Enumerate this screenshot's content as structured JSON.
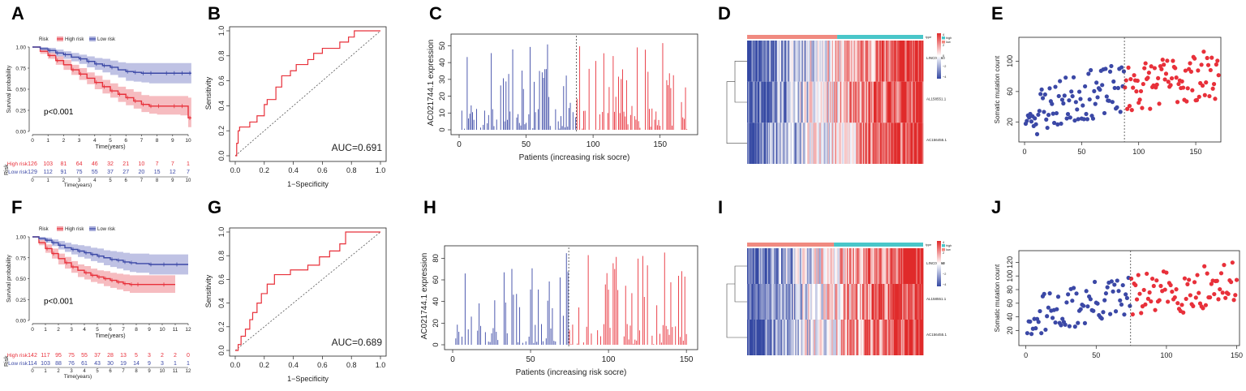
{
  "colors": {
    "high": "#e8303a",
    "low": "#3b48a6",
    "high_band": "#f3a5ab",
    "low_band": "#a9aedb",
    "roc": "#e8303a",
    "heat_low": "#3549a3",
    "heat_mid": "#ffffff",
    "heat_high": "#e02a2a",
    "type_high": "#49c6c9",
    "type_low": "#f08a80",
    "axis": "#222222"
  },
  "chart_data": [
    {
      "id": "A",
      "type": "line",
      "panel_label": "A",
      "legend": {
        "title": "Risk",
        "items": [
          "High risk",
          "Low risk"
        ]
      },
      "ylabel": "Survival probability",
      "xlabel": "Time(years)",
      "xlim": [
        0,
        10
      ],
      "ylim": [
        0,
        1
      ],
      "xticks": [
        0,
        1,
        2,
        3,
        4,
        5,
        6,
        7,
        8,
        9,
        10
      ],
      "yticks": [
        0,
        0.25,
        0.5,
        0.75,
        1
      ],
      "ytick_labels": [
        "0.00",
        "0.25",
        "0.50",
        "0.75",
        "1.00"
      ],
      "pvalue": "p<0.001",
      "series": [
        {
          "name": "High risk",
          "x": [
            0,
            0.5,
            1,
            1.5,
            2,
            2.5,
            3,
            3.5,
            4,
            4.5,
            5,
            5.5,
            6,
            6.5,
            7,
            7.5,
            8,
            8.5,
            9,
            9.5,
            10,
            10.2
          ],
          "y": [
            1,
            0.95,
            0.9,
            0.84,
            0.79,
            0.73,
            0.68,
            0.63,
            0.58,
            0.53,
            0.48,
            0.44,
            0.4,
            0.36,
            0.32,
            0.3,
            0.3,
            0.3,
            0.3,
            0.3,
            0.16,
            0.16
          ],
          "lo": [
            1,
            0.92,
            0.86,
            0.79,
            0.73,
            0.67,
            0.61,
            0.56,
            0.5,
            0.45,
            0.4,
            0.35,
            0.31,
            0.27,
            0.23,
            0.21,
            0.2,
            0.2,
            0.2,
            0.19,
            0.05,
            0.05
          ],
          "hi": [
            1,
            0.98,
            0.94,
            0.89,
            0.85,
            0.79,
            0.75,
            0.7,
            0.66,
            0.61,
            0.57,
            0.53,
            0.5,
            0.47,
            0.43,
            0.42,
            0.42,
            0.42,
            0.42,
            0.42,
            0.4,
            0.4
          ]
        },
        {
          "name": "Low risk",
          "x": [
            0,
            0.5,
            1,
            1.5,
            2,
            2.5,
            3,
            3.5,
            4,
            4.5,
            5,
            5.5,
            6,
            6.5,
            7,
            7.5,
            8,
            8.5,
            9,
            9.5,
            10,
            10.2
          ],
          "y": [
            1,
            0.98,
            0.96,
            0.93,
            0.91,
            0.88,
            0.86,
            0.83,
            0.8,
            0.78,
            0.76,
            0.73,
            0.71,
            0.7,
            0.69,
            0.69,
            0.69,
            0.69,
            0.69,
            0.69,
            0.69,
            0.69
          ],
          "lo": [
            1,
            0.96,
            0.93,
            0.89,
            0.86,
            0.83,
            0.8,
            0.76,
            0.73,
            0.7,
            0.67,
            0.64,
            0.6,
            0.59,
            0.58,
            0.57,
            0.57,
            0.57,
            0.57,
            0.57,
            0.57,
            0.57
          ],
          "hi": [
            1,
            1,
            0.99,
            0.97,
            0.95,
            0.93,
            0.91,
            0.89,
            0.87,
            0.86,
            0.84,
            0.82,
            0.81,
            0.81,
            0.81,
            0.81,
            0.81,
            0.81,
            0.81,
            0.81,
            0.81,
            0.81
          ]
        }
      ],
      "risk_table": {
        "title": "Risk",
        "xlabel": "Time(years)",
        "rows": [
          {
            "label": "High risk",
            "values": [
              "126",
              "103",
              "81",
              "64",
              "46",
              "32",
              "21",
              "10",
              "7",
              "7",
              "1"
            ]
          },
          {
            "label": "Low risk",
            "values": [
              "129",
              "112",
              "91",
              "75",
              "55",
              "37",
              "27",
              "20",
              "15",
              "12",
              "7"
            ]
          }
        ]
      }
    },
    {
      "id": "B",
      "type": "line",
      "panel_label": "B",
      "xlabel": "1−Specificity",
      "ylabel": "Sensitivity",
      "xlim": [
        0,
        1
      ],
      "ylim": [
        0,
        1
      ],
      "xticks": [
        0,
        0.2,
        0.4,
        0.6,
        0.8,
        1
      ],
      "yticks": [
        0,
        0.2,
        0.4,
        0.6,
        0.8,
        1
      ],
      "xtick_labels": [
        "0.0",
        "0.2",
        "0.4",
        "0.6",
        "0.8",
        "1.0"
      ],
      "ytick_labels": [
        "0.0",
        "0.2",
        "0.4",
        "0.6",
        "0.8",
        "1.0"
      ],
      "auc_label": "AUC=0.691",
      "roc": [
        [
          0,
          0
        ],
        [
          0.01,
          0
        ],
        [
          0.01,
          0.1
        ],
        [
          0.02,
          0.1
        ],
        [
          0.02,
          0.2
        ],
        [
          0.03,
          0.2
        ],
        [
          0.03,
          0.23
        ],
        [
          0.1,
          0.23
        ],
        [
          0.1,
          0.27
        ],
        [
          0.15,
          0.27
        ],
        [
          0.15,
          0.32
        ],
        [
          0.2,
          0.32
        ],
        [
          0.2,
          0.41
        ],
        [
          0.22,
          0.41
        ],
        [
          0.22,
          0.45
        ],
        [
          0.28,
          0.45
        ],
        [
          0.28,
          0.55
        ],
        [
          0.32,
          0.55
        ],
        [
          0.32,
          0.64
        ],
        [
          0.38,
          0.64
        ],
        [
          0.38,
          0.68
        ],
        [
          0.42,
          0.68
        ],
        [
          0.42,
          0.73
        ],
        [
          0.5,
          0.73
        ],
        [
          0.5,
          0.77
        ],
        [
          0.54,
          0.77
        ],
        [
          0.54,
          0.82
        ],
        [
          0.6,
          0.82
        ],
        [
          0.6,
          0.86
        ],
        [
          0.72,
          0.86
        ],
        [
          0.72,
          0.91
        ],
        [
          0.78,
          0.91
        ],
        [
          0.78,
          0.95
        ],
        [
          0.82,
          0.95
        ],
        [
          0.82,
          1
        ],
        [
          1,
          1
        ]
      ]
    },
    {
      "id": "C",
      "type": "bar",
      "panel_label": "C",
      "xlabel": "Patients (increasing risk socre)",
      "ylabel": "AC021744.1 expression",
      "n": 170,
      "cutoff": 87,
      "seed": 7,
      "xlim": [
        0,
        172
      ],
      "ylim": [
        0,
        56
      ],
      "xticks": [
        0,
        50,
        100,
        150
      ],
      "yticks": [
        0,
        10,
        20,
        30,
        40,
        50
      ]
    },
    {
      "id": "D",
      "type": "heatmap",
      "panel_label": "D",
      "rows": [
        "LINC00460",
        "AL158551.1",
        "AC156455.1"
      ],
      "n_cols": 170,
      "cutoff": 87,
      "seed": 11,
      "legend": {
        "title": "type",
        "items": [
          "high",
          "low"
        ],
        "scale": [
          "4",
          "2",
          "0",
          "−2",
          "−4"
        ]
      }
    },
    {
      "id": "E",
      "type": "scatter",
      "panel_label": "E",
      "xlabel": "",
      "ylabel": "Somatic mutation count",
      "n": 170,
      "cutoff": 87,
      "seed": 23,
      "xlim": [
        -5,
        172
      ],
      "ylim": [
        0,
        125
      ],
      "xticks": [
        0,
        50,
        100,
        150
      ],
      "yticks": [
        20,
        60,
        100
      ]
    },
    {
      "id": "F",
      "type": "line",
      "panel_label": "F",
      "legend": {
        "title": "Risk",
        "items": [
          "High risk",
          "Low risk"
        ]
      },
      "ylabel": "Survival probability",
      "xlabel": "Time(years)",
      "xlim": [
        0,
        12
      ],
      "ylim": [
        0,
        1
      ],
      "xticks": [
        0,
        1,
        2,
        3,
        4,
        5,
        6,
        7,
        8,
        9,
        10,
        11,
        12
      ],
      "yticks": [
        0,
        0.25,
        0.5,
        0.75,
        1
      ],
      "ytick_labels": [
        "0.00",
        "0.25",
        "0.50",
        "0.75",
        "1.00"
      ],
      "pvalue": "p<0.001",
      "series": [
        {
          "name": "High risk",
          "x": [
            0,
            0.5,
            1,
            1.5,
            2,
            2.5,
            3,
            3.5,
            4,
            4.5,
            5,
            5.5,
            6,
            6.5,
            7,
            7.5,
            8,
            9,
            10,
            11
          ],
          "y": [
            1,
            0.93,
            0.86,
            0.8,
            0.74,
            0.69,
            0.64,
            0.6,
            0.57,
            0.54,
            0.52,
            0.5,
            0.48,
            0.46,
            0.44,
            0.43,
            0.43,
            0.43,
            0.43,
            0.43
          ],
          "lo": [
            1,
            0.9,
            0.81,
            0.74,
            0.67,
            0.62,
            0.57,
            0.52,
            0.49,
            0.46,
            0.44,
            0.41,
            0.39,
            0.37,
            0.35,
            0.33,
            0.33,
            0.33,
            0.33,
            0.33
          ],
          "hi": [
            1,
            0.97,
            0.91,
            0.86,
            0.8,
            0.76,
            0.71,
            0.67,
            0.65,
            0.62,
            0.6,
            0.59,
            0.57,
            0.56,
            0.55,
            0.54,
            0.54,
            0.54,
            0.54,
            0.54
          ]
        },
        {
          "name": "Low risk",
          "x": [
            0,
            0.5,
            1,
            1.5,
            2,
            2.5,
            3,
            3.5,
            4,
            4.5,
            5,
            5.5,
            6,
            6.5,
            7,
            7.5,
            8,
            9,
            10,
            11,
            12
          ],
          "y": [
            1,
            0.98,
            0.96,
            0.93,
            0.9,
            0.87,
            0.85,
            0.83,
            0.81,
            0.79,
            0.77,
            0.75,
            0.73,
            0.72,
            0.7,
            0.69,
            0.68,
            0.67,
            0.67,
            0.67,
            0.67
          ],
          "lo": [
            1,
            0.96,
            0.93,
            0.89,
            0.85,
            0.82,
            0.79,
            0.76,
            0.74,
            0.71,
            0.69,
            0.66,
            0.64,
            0.62,
            0.6,
            0.58,
            0.57,
            0.55,
            0.55,
            0.55,
            0.55
          ],
          "hi": [
            1,
            1,
            0.99,
            0.97,
            0.95,
            0.93,
            0.91,
            0.9,
            0.89,
            0.87,
            0.86,
            0.84,
            0.83,
            0.82,
            0.81,
            0.8,
            0.8,
            0.79,
            0.79,
            0.79,
            0.79
          ]
        }
      ],
      "risk_table": {
        "title": "Risk",
        "xlabel": "Time(years)",
        "rows": [
          {
            "label": "High risk",
            "values": [
              "142",
              "117",
              "95",
              "75",
              "55",
              "37",
              "28",
              "13",
              "5",
              "3",
              "2",
              "2",
              "0"
            ]
          },
          {
            "label": "Low risk",
            "values": [
              "114",
              "103",
              "88",
              "76",
              "61",
              "43",
              "30",
              "19",
              "14",
              "9",
              "3",
              "1",
              "1"
            ]
          }
        ]
      }
    },
    {
      "id": "G",
      "type": "line",
      "panel_label": "G",
      "xlabel": "1−Specificity",
      "ylabel": "Sensitivity",
      "xlim": [
        0,
        1
      ],
      "ylim": [
        0,
        1
      ],
      "xticks": [
        0,
        0.2,
        0.4,
        0.6,
        0.8,
        1
      ],
      "yticks": [
        0,
        0.2,
        0.4,
        0.6,
        0.8,
        1
      ],
      "xtick_labels": [
        "0.0",
        "0.2",
        "0.4",
        "0.6",
        "0.8",
        "1.0"
      ],
      "ytick_labels": [
        "0.0",
        "0.2",
        "0.4",
        "0.6",
        "0.8",
        "1.0"
      ],
      "auc_label": "AUC=0.689",
      "roc": [
        [
          0,
          0
        ],
        [
          0.02,
          0
        ],
        [
          0.02,
          0.05
        ],
        [
          0.04,
          0.05
        ],
        [
          0.04,
          0.12
        ],
        [
          0.07,
          0.12
        ],
        [
          0.07,
          0.18
        ],
        [
          0.1,
          0.18
        ],
        [
          0.1,
          0.26
        ],
        [
          0.12,
          0.26
        ],
        [
          0.12,
          0.32
        ],
        [
          0.15,
          0.32
        ],
        [
          0.15,
          0.4
        ],
        [
          0.18,
          0.4
        ],
        [
          0.18,
          0.48
        ],
        [
          0.22,
          0.48
        ],
        [
          0.22,
          0.56
        ],
        [
          0.27,
          0.56
        ],
        [
          0.27,
          0.64
        ],
        [
          0.38,
          0.64
        ],
        [
          0.38,
          0.68
        ],
        [
          0.5,
          0.68
        ],
        [
          0.5,
          0.72
        ],
        [
          0.58,
          0.72
        ],
        [
          0.58,
          0.79
        ],
        [
          0.65,
          0.79
        ],
        [
          0.65,
          0.84
        ],
        [
          0.72,
          0.84
        ],
        [
          0.72,
          0.9
        ],
        [
          0.76,
          0.9
        ],
        [
          0.76,
          1
        ],
        [
          1,
          1
        ]
      ]
    },
    {
      "id": "H",
      "type": "bar",
      "panel_label": "H",
      "xlabel": "Patients (increasing risk socre)",
      "ylabel": "AC021744.1 expression",
      "n": 150,
      "cutoff": 74,
      "seed": 17,
      "xlim": [
        0,
        152
      ],
      "ylim": [
        0,
        90
      ],
      "xticks": [
        0,
        50,
        100,
        150
      ],
      "yticks": [
        0,
        20,
        40,
        60,
        80
      ]
    },
    {
      "id": "I",
      "type": "heatmap",
      "panel_label": "I",
      "rows": [
        "LINC00460",
        "AL158551.1",
        "AC156455.1"
      ],
      "n_cols": 150,
      "cutoff": 74,
      "seed": 29,
      "legend": {
        "title": "type",
        "items": [
          "high",
          "low"
        ],
        "scale": [
          "4",
          "2",
          "0",
          "−2",
          "−4"
        ]
      }
    },
    {
      "id": "J",
      "type": "scatter",
      "panel_label": "J",
      "xlabel": "",
      "ylabel": "Somatic mutation count",
      "n": 150,
      "cutoff": 74,
      "seed": 31,
      "xlim": [
        -5,
        152
      ],
      "ylim": [
        5,
        130
      ],
      "xticks": [
        0,
        50,
        100,
        150
      ],
      "yticks": [
        20,
        40,
        60,
        80,
        100,
        120
      ]
    }
  ]
}
